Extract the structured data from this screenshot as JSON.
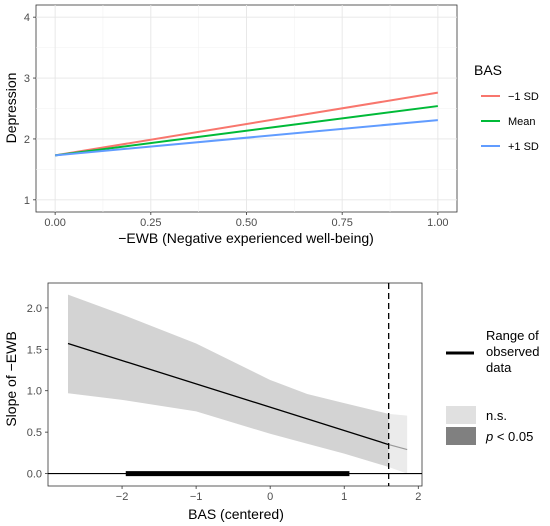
{
  "chart_data": [
    {
      "type": "line",
      "xlabel": "−EWB (Negative experienced well-being)",
      "ylabel": "Depression",
      "xlim": [
        -0.05,
        1.05
      ],
      "ylim": [
        0.8,
        4.2
      ],
      "x_ticks": [
        0.0,
        0.25,
        0.5,
        0.75,
        1.0
      ],
      "x_tick_labels": [
        "0.00",
        "0.25",
        "0.50",
        "0.75",
        "1.00"
      ],
      "y_ticks": [
        1,
        2,
        3,
        4
      ],
      "y_tick_labels": [
        "1",
        "2",
        "3",
        "4"
      ],
      "grid": true,
      "background": "#ffffff",
      "legend": {
        "title": "BAS",
        "position": "right"
      },
      "series": [
        {
          "name": "−1 SD",
          "color": "#F8766D",
          "x": [
            0.0,
            1.0
          ],
          "y": [
            1.73,
            2.76
          ]
        },
        {
          "name": "Mean",
          "color": "#00BA38",
          "x": [
            0.0,
            1.0
          ],
          "y": [
            1.73,
            2.54
          ]
        },
        {
          "name": "+1 SD",
          "color": "#619CFF",
          "x": [
            0.0,
            1.0
          ],
          "y": [
            1.73,
            2.31
          ]
        }
      ]
    },
    {
      "type": "line",
      "xlabel": "BAS (centered)",
      "ylabel": "Slope of −EWB",
      "xlim": [
        -3.0,
        2.05
      ],
      "ylim": [
        -0.15,
        2.3
      ],
      "x_ticks": [
        -2,
        -1,
        0,
        1,
        2
      ],
      "x_tick_labels": [
        "−2",
        "−1",
        "0",
        "1",
        "2"
      ],
      "y_ticks": [
        0.0,
        0.5,
        1.0,
        1.5,
        2.0
      ],
      "y_tick_labels": [
        "0.0",
        "0.5",
        "1.0",
        "1.5",
        "2.0"
      ],
      "grid": false,
      "slope_line": {
        "x": [
          -2.73,
          1.6
        ],
        "y": [
          1.57,
          0.35
        ],
        "color": "#000000"
      },
      "slope_line_ns": {
        "x": [
          1.6,
          1.85
        ],
        "y": [
          0.35,
          0.29
        ],
        "color": "#999999"
      },
      "confidence_band": {
        "x": [
          -2.73,
          -2.0,
          -1.0,
          0.0,
          0.5,
          1.0,
          1.6
        ],
        "lower": [
          0.97,
          0.89,
          0.75,
          0.48,
          0.36,
          0.24,
          0.08
        ],
        "upper": [
          2.16,
          1.92,
          1.57,
          1.13,
          0.96,
          0.85,
          0.72
        ],
        "color": "#D3D3D3"
      },
      "confidence_band_ns": {
        "x": [
          1.6,
          1.85
        ],
        "lower": [
          0.08,
          0.0
        ],
        "upper": [
          0.72,
          0.7
        ],
        "color": "#EBEBEB"
      },
      "zero_line": {
        "y": 0.0
      },
      "observed_range": {
        "x": [
          -1.95,
          1.07
        ],
        "y": 0.0
      },
      "jn_point": {
        "x": 1.6,
        "style": "dashed"
      },
      "legend": {
        "position": "right",
        "range_label": "Range of\nobserved\ndata",
        "ns_label": "n.s.",
        "sig_label_italic": "p",
        "sig_label_rest": " < 0.05",
        "ns_color": "#E0E0E0",
        "sig_color": "#808080"
      }
    }
  ]
}
